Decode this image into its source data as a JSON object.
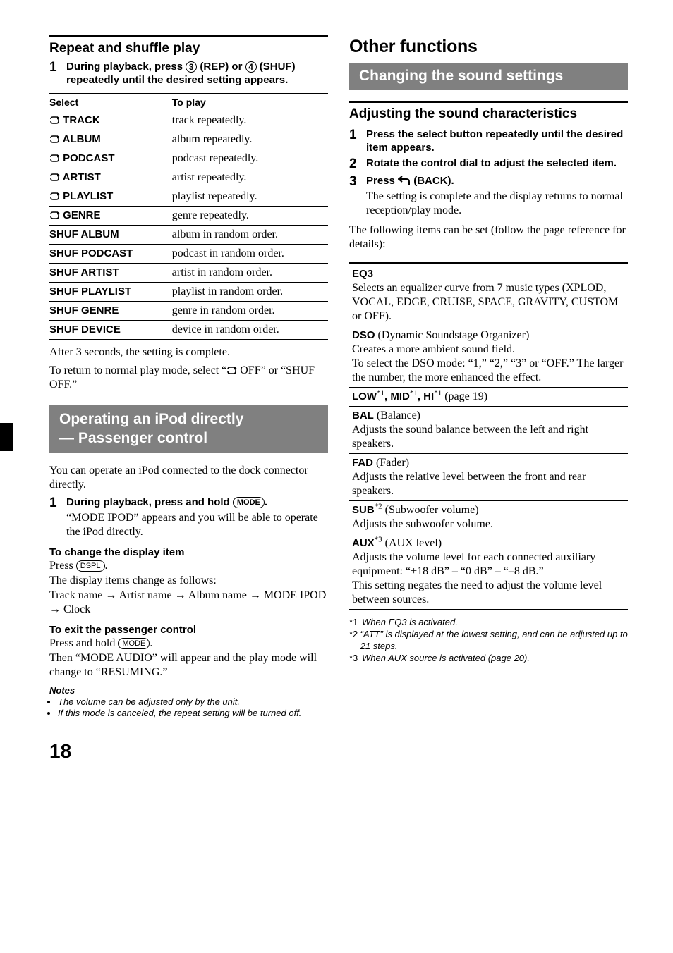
{
  "pageNumber": "18",
  "left": {
    "repeatShuffle": {
      "heading": "Repeat and shuffle play",
      "step": {
        "num": "1",
        "textBefore": "During playback, press ",
        "btn1": "3",
        "textMid1": " (REP) or ",
        "btn2": "4",
        "textMid2": " (SHUF) repeatedly until the desired setting appears."
      },
      "tableHeaders": [
        "Select",
        "To play"
      ],
      "tableRows": [
        {
          "icon": true,
          "sel": " TRACK",
          "play": "track repeatedly."
        },
        {
          "icon": true,
          "sel": " ALBUM",
          "play": "album repeatedly."
        },
        {
          "icon": true,
          "sel": " PODCAST",
          "play": "podcast repeatedly."
        },
        {
          "icon": true,
          "sel": " ARTIST",
          "play": "artist repeatedly."
        },
        {
          "icon": true,
          "sel": " PLAYLIST",
          "play": "playlist repeatedly."
        },
        {
          "icon": true,
          "sel": " GENRE",
          "play": "genre repeatedly."
        },
        {
          "icon": false,
          "sel": "SHUF ALBUM",
          "play": "album in random order."
        },
        {
          "icon": false,
          "sel": "SHUF PODCAST",
          "play": "podcast in random order."
        },
        {
          "icon": false,
          "sel": "SHUF ARTIST",
          "play": "artist in random order."
        },
        {
          "icon": false,
          "sel": "SHUF PLAYLIST",
          "play": "playlist in random order."
        },
        {
          "icon": false,
          "sel": "SHUF GENRE",
          "play": "genre in random order."
        },
        {
          "icon": false,
          "sel": "SHUF DEVICE",
          "play": "device in random order."
        }
      ],
      "after1": "After 3 seconds, the setting is complete.",
      "after2a": "To return to normal play mode, select “",
      "after2b": " OFF” or “SHUF OFF.”"
    },
    "passenger": {
      "bandLine1": "Operating an iPod directly",
      "bandLine2": "— Passenger control",
      "intro": "You can operate an iPod connected to the dock connector directly.",
      "step": {
        "num": "1",
        "textBefore": "During playback, press and hold ",
        "btn": "MODE",
        "textAfter": ".",
        "norm": "“MODE IPOD” appears and you will be able to operate the iPod directly."
      },
      "changeDisplay": {
        "heading": "To change the display item",
        "pressBefore": "Press ",
        "pressBtn": "DSPL",
        "pressAfter": ".",
        "line2": "The display items change as follows:",
        "line3": "Track name → Artist name → Album name → MODE IPOD → Clock"
      },
      "exit": {
        "heading": "To exit the passenger control",
        "pressBefore": "Press and hold ",
        "pressBtn": "MODE",
        "pressAfter": ".",
        "line2": "Then “MODE AUDIO” will appear and the play mode will change to “RESUMING.”"
      },
      "notesHeading": "Notes",
      "notes": [
        "The volume can be adjusted only by the unit.",
        "If this mode is canceled, the repeat setting will be turned off."
      ]
    }
  },
  "right": {
    "bigHeading": "Other functions",
    "band": "Changing the sound settings",
    "adjusting": {
      "heading": "Adjusting the sound characteristics",
      "steps": [
        {
          "num": "1",
          "text": "Press the select button repeatedly until the desired item appears."
        },
        {
          "num": "2",
          "text": "Rotate the control dial to adjust the selected item."
        },
        {
          "num": "3",
          "textBefore": "Press ",
          "back": true,
          "textAfter": " (BACK).",
          "norm": "The setting is complete and the display returns to normal reception/play mode."
        }
      ],
      "followText": "The following items can be set (follow the page reference for details):"
    },
    "refs": [
      {
        "head": "EQ3",
        "body": "Selects an equalizer curve from 7 music types (XPLOD, VOCAL, EDGE, CRUISE, SPACE, GRAVITY, CUSTOM or OFF)."
      },
      {
        "head": "DSO",
        "paren": " (Dynamic Soundstage Organizer)",
        "body": "Creates a more ambient sound field.\nTo select the DSO mode: “1,” “2,” “3” or “OFF.” The larger the number, the more enhanced the effect."
      },
      {
        "head": "LOW",
        "sup1": "*1",
        "mid1": ", MID",
        "sup2": "*1",
        "mid2": ", HI",
        "sup3": "*1",
        "tail": " (page 19)"
      },
      {
        "head": "BAL",
        "paren": " (Balance)",
        "body": "Adjusts the sound balance between the left and right speakers."
      },
      {
        "head": "FAD",
        "paren": " (Fader)",
        "body": "Adjusts the relative level between the front and rear speakers."
      },
      {
        "head": "SUB",
        "sup1": "*2",
        "paren": " (Subwoofer volume)",
        "body": "Adjusts the subwoofer volume."
      },
      {
        "head": "AUX",
        "sup1": "*3",
        "paren": "  (AUX level)",
        "body": "Adjusts the volume level for each connected auxiliary equipment: “+18 dB” – “0 dB” – “–8 dB.”\nThis setting negates the need to adjust the volume level between sources."
      }
    ],
    "footnotes": [
      {
        "num": "*1",
        "text": "When EQ3 is activated."
      },
      {
        "num": "*2",
        "text": "“ATT” is displayed at the lowest setting, and can be adjusted up to 21 steps."
      },
      {
        "num": "*3",
        "text": "When AUX source is activated (page 20)."
      }
    ]
  }
}
